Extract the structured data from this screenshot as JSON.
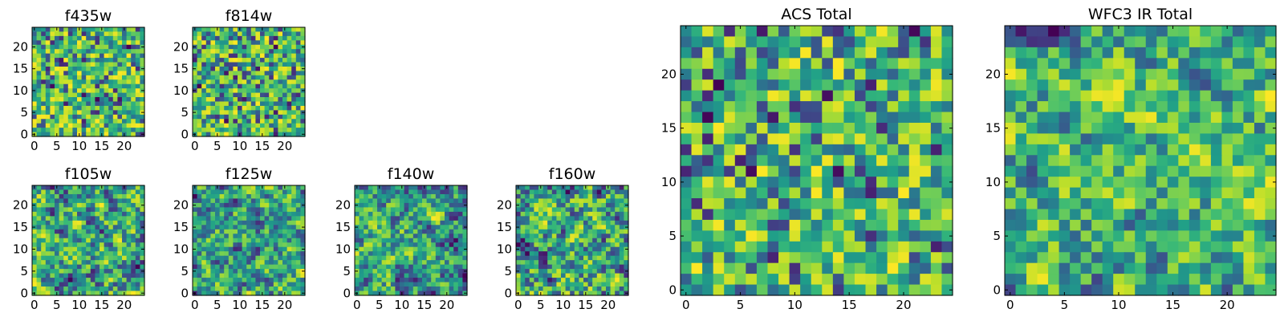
{
  "chart_data": [
    {
      "type": "heatmap",
      "title": "f435w",
      "grid_size": 25,
      "xlim": [
        -0.5,
        24.5
      ],
      "ylim": [
        -0.5,
        24.5
      ],
      "xticks": [
        0,
        5,
        10,
        15,
        20
      ],
      "yticks": [
        0,
        5,
        10,
        15,
        20
      ],
      "colormap": "viridis",
      "seed": 11,
      "smooth": 0
    },
    {
      "type": "heatmap",
      "title": "f814w",
      "grid_size": 25,
      "xlim": [
        -0.5,
        24.5
      ],
      "ylim": [
        -0.5,
        24.5
      ],
      "xticks": [
        0,
        5,
        10,
        15,
        20
      ],
      "yticks": [
        0,
        5,
        10,
        15,
        20
      ],
      "colormap": "viridis",
      "seed": 23,
      "smooth": 0
    },
    {
      "type": "heatmap",
      "title": "f105w",
      "grid_size": 25,
      "xlim": [
        -0.5,
        24.5
      ],
      "ylim": [
        -0.5,
        24.5
      ],
      "xticks": [
        0,
        5,
        10,
        15,
        20
      ],
      "yticks": [
        0,
        5,
        10,
        15,
        20
      ],
      "colormap": "viridis",
      "seed": 37,
      "smooth": 1
    },
    {
      "type": "heatmap",
      "title": "f125w",
      "grid_size": 25,
      "xlim": [
        -0.5,
        24.5
      ],
      "ylim": [
        -0.5,
        24.5
      ],
      "xticks": [
        0,
        5,
        10,
        15,
        20
      ],
      "yticks": [
        0,
        5,
        10,
        15,
        20
      ],
      "colormap": "viridis",
      "seed": 41,
      "smooth": 1
    },
    {
      "type": "heatmap",
      "title": "f140w",
      "grid_size": 25,
      "xlim": [
        -0.5,
        24.5
      ],
      "ylim": [
        -0.5,
        24.5
      ],
      "xticks": [
        0,
        5,
        10,
        15,
        20
      ],
      "yticks": [
        0,
        5,
        10,
        15,
        20
      ],
      "colormap": "viridis",
      "seed": 53,
      "smooth": 1
    },
    {
      "type": "heatmap",
      "title": "f160w",
      "grid_size": 25,
      "xlim": [
        -0.5,
        24.5
      ],
      "ylim": [
        -0.5,
        24.5
      ],
      "xticks": [
        0,
        5,
        10,
        15,
        20
      ],
      "yticks": [
        0,
        5,
        10,
        15,
        20
      ],
      "colormap": "viridis",
      "seed": 67,
      "smooth": 1
    },
    {
      "type": "heatmap",
      "title": "ACS Total",
      "grid_size": 25,
      "xlim": [
        -0.5,
        24.5
      ],
      "ylim": [
        -0.5,
        24.5
      ],
      "xticks": [
        0,
        5,
        10,
        15,
        20
      ],
      "yticks": [
        0,
        5,
        10,
        15,
        20
      ],
      "colormap": "viridis",
      "seed": 79,
      "smooth": 0
    },
    {
      "type": "heatmap",
      "title": "WFC3 IR Total",
      "grid_size": 25,
      "xlim": [
        -0.5,
        24.5
      ],
      "ylim": [
        -0.5,
        24.5
      ],
      "xticks": [
        0,
        5,
        10,
        15,
        20
      ],
      "yticks": [
        0,
        5,
        10,
        15,
        20
      ],
      "colormap": "viridis",
      "seed": 97,
      "smooth": 1
    }
  ]
}
